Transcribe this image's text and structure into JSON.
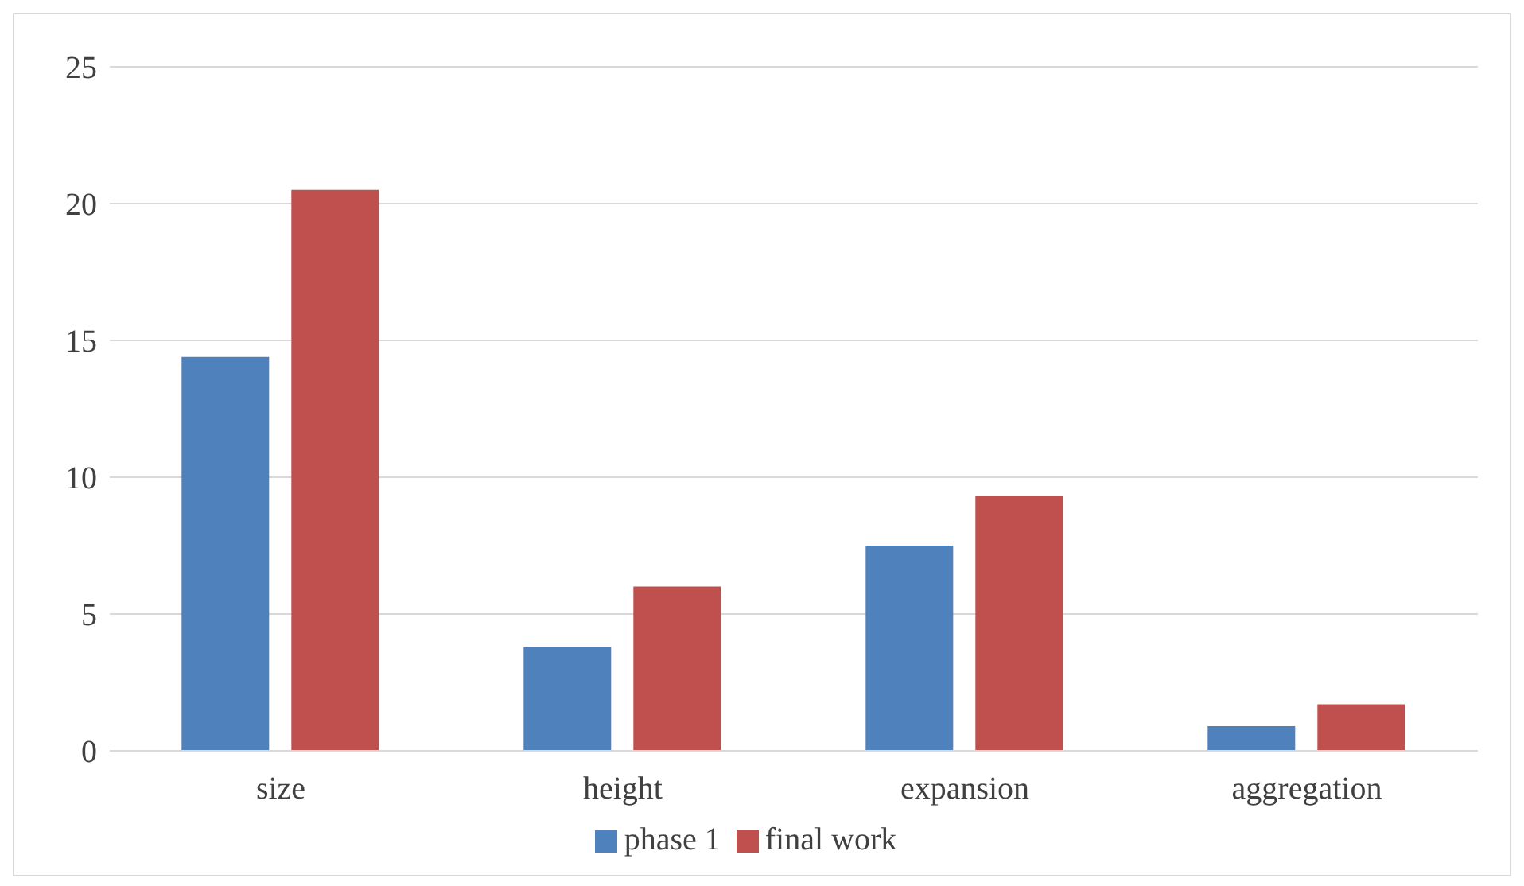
{
  "chart_data": {
    "type": "bar",
    "categories": [
      "size",
      "height",
      "expansion",
      "aggregation"
    ],
    "series": [
      {
        "name": "phase 1",
        "color": "#4f81bd",
        "values": [
          14.4,
          3.8,
          7.5,
          0.9
        ]
      },
      {
        "name": "final work",
        "color": "#c0504d",
        "values": [
          20.5,
          6.0,
          9.3,
          1.7
        ]
      }
    ],
    "ylim": [
      0,
      25
    ],
    "yticks": [
      0,
      5,
      10,
      15,
      20,
      25
    ],
    "grid": "y",
    "legend": "bottom"
  }
}
